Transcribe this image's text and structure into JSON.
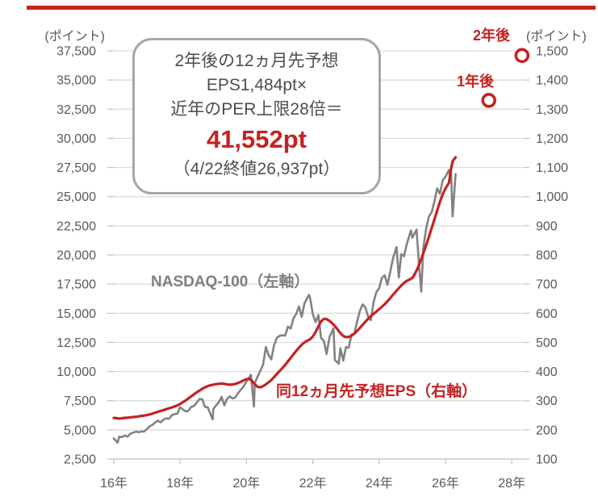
{
  "colors": {
    "accent_red": "#c42222",
    "series_gray": "#828282",
    "grid": "#d9d9d9",
    "axis": "#bfbfbf",
    "tick_text": "#595959",
    "callout_border": "#a6a6a6",
    "callout_text": "#4d4d4d"
  },
  "annotation_box": {
    "line1": "2年後の12ヵ月先予想",
    "line2": "EPS1,484pt×",
    "line3": "近年のPER上限28倍＝",
    "result": "41,552pt",
    "note": "（4/22終値26,937pt）"
  },
  "chart_data": {
    "type": "line",
    "grid": true,
    "x_axis": {
      "tick_years": [
        2016,
        2018,
        2020,
        2022,
        2024,
        2026,
        2028
      ],
      "tick_labels": [
        "16年",
        "18年",
        "20年",
        "22年",
        "24年",
        "26年",
        "28年"
      ]
    },
    "left_axis": {
      "unit": "(ポイント)",
      "min": 2500,
      "max": 37500,
      "step": 2500,
      "tick_labels": [
        "37,500",
        "35,000",
        "32,500",
        "30,000",
        "27,500",
        "25,000",
        "22,500",
        "20,000",
        "17,500",
        "15,000",
        "12,500",
        "10,000",
        "7,500",
        "5,000",
        "2,500"
      ]
    },
    "right_axis": {
      "unit": "(ポイント)",
      "min": 100,
      "max": 1500,
      "step": 100,
      "tick_labels": [
        "1,500",
        "1,400",
        "1,300",
        "1,200",
        "1,100",
        "1,000",
        "900",
        "800",
        "700",
        "600",
        "500",
        "400",
        "300",
        "200",
        "100"
      ]
    },
    "series": [
      {
        "name": "NASDAQ-100（左軸）",
        "axis": "left",
        "color": "#828282",
        "points": [
          [
            "2016-01",
            4270
          ],
          [
            "2016-02-11",
            3900
          ],
          [
            "2016-03",
            4430
          ],
          [
            "2016-04",
            4380
          ],
          [
            "2016-05",
            4520
          ],
          [
            "2016-06",
            4420
          ],
          [
            "2016-07",
            4680
          ],
          [
            "2016-08",
            4760
          ],
          [
            "2016-09",
            4850
          ],
          [
            "2016-10",
            4800
          ],
          [
            "2016-11",
            4850
          ],
          [
            "2016-12",
            4863
          ],
          [
            "2017-01",
            5087
          ],
          [
            "2017-02",
            5300
          ],
          [
            "2017-03",
            5440
          ],
          [
            "2017-04",
            5647
          ],
          [
            "2017-05",
            5788
          ],
          [
            "2017-06",
            5650
          ],
          [
            "2017-07",
            5880
          ],
          [
            "2017-08",
            5988
          ],
          [
            "2017-09",
            5950
          ],
          [
            "2017-10",
            6262
          ],
          [
            "2017-11",
            6350
          ],
          [
            "2017-12",
            6397
          ],
          [
            "2018-01",
            6950
          ],
          [
            "2018-02",
            6755
          ],
          [
            "2018-03",
            6581
          ],
          [
            "2018-04",
            6650
          ],
          [
            "2018-05",
            6970
          ],
          [
            "2018-06",
            7041
          ],
          [
            "2018-07",
            7350
          ],
          [
            "2018-08",
            7650
          ],
          [
            "2018-09",
            7627
          ],
          [
            "2018-10",
            6966
          ],
          [
            "2018-11",
            6941
          ],
          [
            "2018-12-24",
            5895
          ],
          [
            "2019-01",
            6790
          ],
          [
            "2019-02",
            7100
          ],
          [
            "2019-03",
            7378
          ],
          [
            "2019-04",
            7830
          ],
          [
            "2019-05",
            7109
          ],
          [
            "2019-06",
            7671
          ],
          [
            "2019-07",
            7873
          ],
          [
            "2019-08",
            7691
          ],
          [
            "2019-09",
            7800
          ],
          [
            "2019-10",
            8160
          ],
          [
            "2019-11",
            8450
          ],
          [
            "2019-12",
            8733
          ],
          [
            "2020-01",
            9151
          ],
          [
            "2020-02-19",
            9718
          ],
          [
            "2020-03-23",
            6994
          ],
          [
            "2020-04",
            9001
          ],
          [
            "2020-05",
            9556
          ],
          [
            "2020-06",
            10057
          ],
          [
            "2020-07",
            10587
          ],
          [
            "2020-08",
            12110
          ],
          [
            "2020-09",
            11418
          ],
          [
            "2020-10",
            11052
          ],
          [
            "2020-11",
            12268
          ],
          [
            "2020-12",
            12888
          ],
          [
            "2021-01",
            13070
          ],
          [
            "2021-02",
            13110
          ],
          [
            "2021-03",
            13091
          ],
          [
            "2021-04",
            13860
          ],
          [
            "2021-05",
            13687
          ],
          [
            "2021-06",
            14555
          ],
          [
            "2021-07",
            14960
          ],
          [
            "2021-08",
            15583
          ],
          [
            "2021-09",
            14689
          ],
          [
            "2021-10",
            15850
          ],
          [
            "2021-11-19",
            16573
          ],
          [
            "2021-12",
            16320
          ],
          [
            "2022-01",
            14930
          ],
          [
            "2022-02",
            14238
          ],
          [
            "2022-03",
            14838
          ],
          [
            "2022-04",
            12871
          ],
          [
            "2022-05",
            12642
          ],
          [
            "2022-06",
            11504
          ],
          [
            "2022-07",
            12948
          ],
          [
            "2022-08-15",
            13700
          ],
          [
            "2022-09",
            10971
          ],
          [
            "2022-10-13",
            10690
          ],
          [
            "2022-11",
            11994
          ],
          [
            "2022-12",
            10940
          ],
          [
            "2023-01",
            12102
          ],
          [
            "2023-02",
            12042
          ],
          [
            "2023-03",
            13181
          ],
          [
            "2023-04",
            13245
          ],
          [
            "2023-05",
            14254
          ],
          [
            "2023-06",
            15179
          ],
          [
            "2023-07",
            15757
          ],
          [
            "2023-08",
            15501
          ],
          [
            "2023-09",
            14715
          ],
          [
            "2023-10",
            14410
          ],
          [
            "2023-11",
            15948
          ],
          [
            "2023-12",
            16826
          ],
          [
            "2024-01",
            17137
          ],
          [
            "2024-02",
            18044
          ],
          [
            "2024-03",
            18255
          ],
          [
            "2024-04",
            17441
          ],
          [
            "2024-05",
            18537
          ],
          [
            "2024-06",
            19683
          ],
          [
            "2024-07-10",
            20675
          ],
          [
            "2024-08-05",
            18060
          ],
          [
            "2024-09",
            20060
          ],
          [
            "2024-10",
            19890
          ],
          [
            "2024-11",
            20930
          ],
          [
            "2024-12-16",
            22100
          ],
          [
            "2025-01",
            21478
          ],
          [
            "2025-02-18",
            22175
          ],
          [
            "2025-03-13",
            19200
          ],
          [
            "2025-04-08",
            16860
          ],
          [
            "2025-05",
            20600
          ],
          [
            "2025-06",
            22240
          ],
          [
            "2025-07",
            23300
          ],
          [
            "2025-08",
            23650
          ],
          [
            "2025-09",
            24600
          ],
          [
            "2025-10",
            25700
          ],
          [
            "2025-11",
            25250
          ],
          [
            "2025-12",
            26400
          ],
          [
            "2026-01",
            26700
          ],
          [
            "2026-02-10",
            27300
          ],
          [
            "2026-02-20",
            26600
          ],
          [
            "2026-03-01",
            27200
          ],
          [
            "2026-03-18",
            23300
          ],
          [
            "2026-04-22",
            26937
          ]
        ]
      },
      {
        "name": "同12ヵ月先予想EPS（右軸）",
        "axis": "right",
        "color": "#c42222",
        "points": [
          [
            "2016-01",
            241
          ],
          [
            "2016-02",
            240
          ],
          [
            "2016-03",
            239
          ],
          [
            "2016-04",
            240
          ],
          [
            "2016-05",
            241
          ],
          [
            "2016-06",
            242
          ],
          [
            "2016-07",
            243
          ],
          [
            "2016-08",
            244
          ],
          [
            "2016-09",
            245
          ],
          [
            "2016-10",
            246
          ],
          [
            "2016-11",
            248
          ],
          [
            "2016-12",
            249
          ],
          [
            "2017-01",
            251
          ],
          [
            "2017-02",
            253
          ],
          [
            "2017-03",
            256
          ],
          [
            "2017-04",
            259
          ],
          [
            "2017-05",
            262
          ],
          [
            "2017-06",
            265
          ],
          [
            "2017-07",
            268
          ],
          [
            "2017-08",
            271
          ],
          [
            "2017-09",
            274
          ],
          [
            "2017-10",
            277
          ],
          [
            "2017-11",
            280
          ],
          [
            "2017-12",
            284
          ],
          [
            "2018-01",
            289
          ],
          [
            "2018-02",
            295
          ],
          [
            "2018-03",
            301
          ],
          [
            "2018-04",
            308
          ],
          [
            "2018-05",
            315
          ],
          [
            "2018-06",
            322
          ],
          [
            "2018-07",
            329
          ],
          [
            "2018-08",
            335
          ],
          [
            "2018-09",
            341
          ],
          [
            "2018-10",
            346
          ],
          [
            "2018-11",
            350
          ],
          [
            "2018-12",
            353
          ],
          [
            "2019-01",
            355
          ],
          [
            "2019-02",
            357
          ],
          [
            "2019-03",
            358
          ],
          [
            "2019-04",
            359
          ],
          [
            "2019-05",
            358
          ],
          [
            "2019-06",
            356
          ],
          [
            "2019-07",
            355
          ],
          [
            "2019-08",
            356
          ],
          [
            "2019-09",
            358
          ],
          [
            "2019-10",
            361
          ],
          [
            "2019-11",
            365
          ],
          [
            "2019-12",
            370
          ],
          [
            "2020-01",
            374
          ],
          [
            "2020-02",
            375
          ],
          [
            "2020-03",
            368
          ],
          [
            "2020-04",
            356
          ],
          [
            "2020-05",
            348
          ],
          [
            "2020-06",
            346
          ],
          [
            "2020-07",
            350
          ],
          [
            "2020-08",
            356
          ],
          [
            "2020-09",
            363
          ],
          [
            "2020-10",
            371
          ],
          [
            "2020-11",
            381
          ],
          [
            "2020-12",
            392
          ],
          [
            "2021-01",
            402
          ],
          [
            "2021-02",
            412
          ],
          [
            "2021-03",
            423
          ],
          [
            "2021-04",
            435
          ],
          [
            "2021-05",
            447
          ],
          [
            "2021-06",
            459
          ],
          [
            "2021-07",
            471
          ],
          [
            "2021-08",
            482
          ],
          [
            "2021-09",
            492
          ],
          [
            "2021-10",
            500
          ],
          [
            "2021-11",
            506
          ],
          [
            "2021-12",
            511
          ],
          [
            "2022-01",
            520
          ],
          [
            "2022-02",
            535
          ],
          [
            "2022-03",
            555
          ],
          [
            "2022-04",
            572
          ],
          [
            "2022-05",
            581
          ],
          [
            "2022-06",
            580
          ],
          [
            "2022-07",
            574
          ],
          [
            "2022-08",
            566
          ],
          [
            "2022-09",
            556
          ],
          [
            "2022-10",
            544
          ],
          [
            "2022-11",
            532
          ],
          [
            "2022-12",
            522
          ],
          [
            "2023-01",
            518
          ],
          [
            "2023-02",
            519
          ],
          [
            "2023-03",
            523
          ],
          [
            "2023-04",
            530
          ],
          [
            "2023-05",
            539
          ],
          [
            "2023-06",
            549
          ],
          [
            "2023-07",
            560
          ],
          [
            "2023-08",
            571
          ],
          [
            "2023-09",
            581
          ],
          [
            "2023-10",
            590
          ],
          [
            "2023-11",
            598
          ],
          [
            "2023-12",
            606
          ],
          [
            "2024-01",
            614
          ],
          [
            "2024-02",
            622
          ],
          [
            "2024-03",
            631
          ],
          [
            "2024-04",
            641
          ],
          [
            "2024-05",
            652
          ],
          [
            "2024-06",
            663
          ],
          [
            "2024-07",
            674
          ],
          [
            "2024-08",
            685
          ],
          [
            "2024-09",
            695
          ],
          [
            "2024-10",
            704
          ],
          [
            "2024-11",
            711
          ],
          [
            "2024-12",
            716
          ],
          [
            "2025-01",
            721
          ],
          [
            "2025-02",
            736
          ],
          [
            "2025-03",
            756
          ],
          [
            "2025-04",
            780
          ],
          [
            "2025-05",
            806
          ],
          [
            "2025-06",
            833
          ],
          [
            "2025-07",
            862
          ],
          [
            "2025-08",
            892
          ],
          [
            "2025-09",
            922
          ],
          [
            "2025-10",
            952
          ],
          [
            "2025-11",
            982
          ],
          [
            "2025-12",
            1008
          ],
          [
            "2026-01",
            1028
          ],
          [
            "2026-02-10",
            1048
          ],
          [
            "2026-03-01",
            1095
          ],
          [
            "2026-03-20",
            1122
          ],
          [
            "2026-04-22",
            1135
          ]
        ]
      }
    ],
    "forecast_markers": [
      {
        "label": "1年後",
        "date": "2027-04-22",
        "value": 1330
      },
      {
        "label": "2年後",
        "date": "2028-04-22",
        "value": 1484
      }
    ]
  }
}
